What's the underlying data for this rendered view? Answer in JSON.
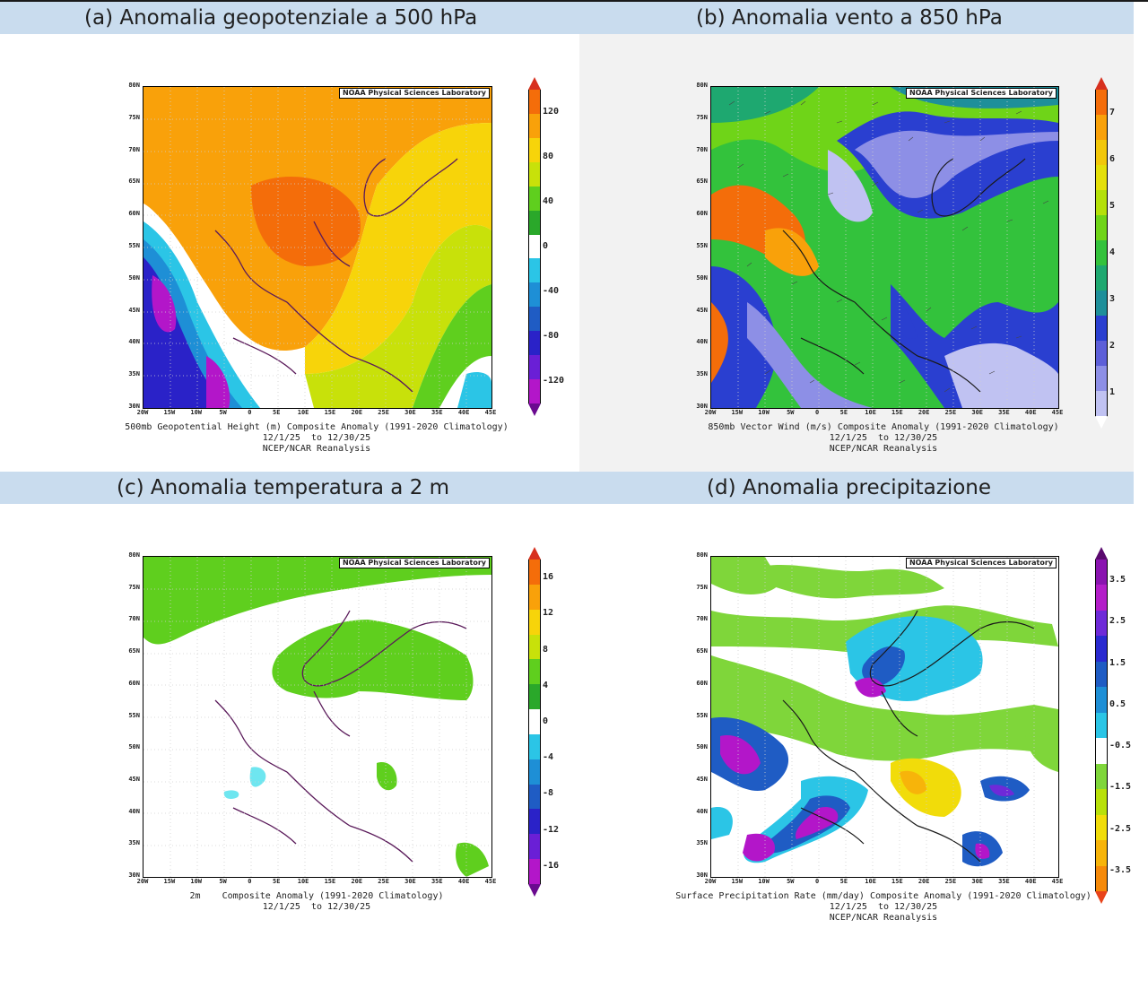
{
  "panels": {
    "a": {
      "title": "(a) Anomalia geopotenziale a 500 hPa",
      "credit": "NOAA Physical Sciences Laboratory",
      "caption_line1": "500mb Geopotential Height (m) Composite Anomaly (1991-2020 Climatology)",
      "caption_line2": "12/1/25  to 12/30/25",
      "caption_line3": "NCEP/NCAR Reanalysis",
      "colorbar_labels": [
        "120",
        "80",
        "40",
        "0",
        "-40",
        "-80",
        "-120"
      ],
      "colors": [
        "#fff06a",
        "#f9f71a",
        "#c8e63a",
        "#7fd63a",
        "#3fbf3f"
      ],
      "scale_colors": [
        "#d7301f",
        "#f46d0a",
        "#f9a10a",
        "#f7d40a",
        "#c8e10a",
        "#5fcf1e",
        "#2aa82a",
        "#ffffff",
        "#2bc5e6",
        "#1e8fd6",
        "#1f5cc4",
        "#2a22c8",
        "#6a1fd6",
        "#b316c9",
        "#6a0a8f"
      ]
    },
    "b": {
      "title": "(b) Anomalia vento a 850 hPa",
      "credit": "NOAA Physical Sciences Laboratory",
      "caption_line1": "850mb Vector Wind (m/s) Composite Anomaly (1991-2020 Climatology)",
      "caption_line2": "12/1/25  to 12/30/25",
      "caption_line3": "NCEP/NCAR Reanalysis",
      "colorbar_labels": [
        "7",
        "6",
        "5",
        "4",
        "3",
        "2",
        "1"
      ],
      "scale_colors": [
        "#d7301f",
        "#f46d0a",
        "#f9a10a",
        "#f2c70a",
        "#e4df0a",
        "#b4e00a",
        "#6fd418",
        "#33c23c",
        "#1ea870",
        "#1e8f9a",
        "#2a3fd0",
        "#5d5fd8",
        "#8d8fe6",
        "#c0c2f2",
        "#ffffff"
      ]
    },
    "c": {
      "title": "(c) Anomalia temperatura a 2 m",
      "credit": "NOAA Physical Sciences Laboratory",
      "caption_line1": "2m    Composite Anomaly (1991-2020 Climatology)",
      "caption_line2": "12/1/25  to 12/30/25",
      "colorbar_labels": [
        "16",
        "12",
        "8",
        "4",
        "0",
        "-4",
        "-8",
        "-12",
        "-16"
      ],
      "scale_colors": [
        "#d7301f",
        "#f46d0a",
        "#f9a10a",
        "#f7d40a",
        "#c8e10a",
        "#5fcf1e",
        "#2aa82a",
        "#ffffff",
        "#2bc5e6",
        "#1e8fd6",
        "#1f5cc4",
        "#2a22c8",
        "#6a1fd6",
        "#b316c9",
        "#6a0a8f"
      ]
    },
    "d": {
      "title": "(d) Anomalia precipitazione",
      "credit": "NOAA Physical Sciences Laboratory",
      "caption_line1": "Surface Precipitation Rate (mm/day) Composite Anomaly (1991-2020 Climatology)",
      "caption_line2": "12/1/25  to 12/30/25",
      "caption_line3": "NCEP/NCAR Reanalysis",
      "colorbar_labels": [
        "3.5",
        "2.5",
        "1.5",
        "0.5",
        "-0.5",
        "-1.5",
        "-2.5",
        "-3.5"
      ],
      "scale_colors": [
        "#5a0a6e",
        "#8a14b0",
        "#b31ec9",
        "#6e2ad8",
        "#2a2ad0",
        "#1f5cc4",
        "#1e8fd6",
        "#2bc5e6",
        "#ffffff",
        "#7fd63a",
        "#b8e00a",
        "#f1dc0a",
        "#f7b40a",
        "#f68a0a",
        "#e8431a"
      ]
    }
  },
  "lat_labels": [
    "80N",
    "75N",
    "70N",
    "65N",
    "60N",
    "55N",
    "50N",
    "45N",
    "40N",
    "35N",
    "30N"
  ],
  "lon_labels": [
    "20W",
    "15W",
    "10W",
    "5W",
    "0",
    "5E",
    "10E",
    "15E",
    "20E",
    "25E",
    "30E",
    "35E",
    "40E",
    "45E"
  ]
}
